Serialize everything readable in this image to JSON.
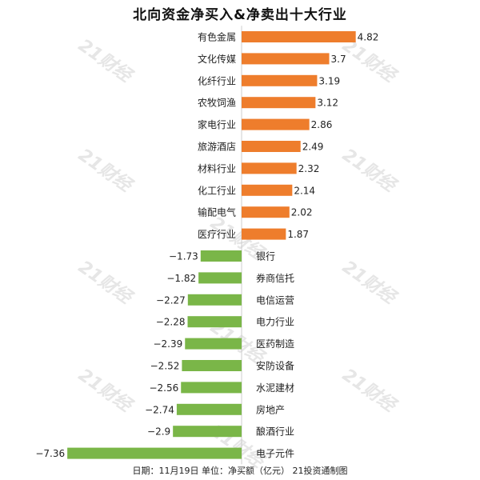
{
  "page": {
    "title": "北向资金净买入&净卖出十大行业",
    "watermark": "21财经",
    "footer": "日期：11月19日 单位：净买额（亿元） 21投资通制图"
  },
  "colors": {
    "positive": "#ee7d2c",
    "negative": "#7ab648",
    "axis": "#cccccc",
    "text": "#222222"
  },
  "chart_data": {
    "type": "bar",
    "orientation": "horizontal",
    "unit": "净买额（亿元）",
    "categories": [
      "有色金属",
      "文化传媒",
      "化纤行业",
      "农牧饲渔",
      "家电行业",
      "旅游酒店",
      "材料行业",
      "化工行业",
      "输配电气",
      "医疗行业",
      "银行",
      "券商信托",
      "电信运营",
      "电力行业",
      "医药制造",
      "安防设备",
      "水泥建材",
      "房地产",
      "酿酒行业",
      "电子元件"
    ],
    "values": [
      4.82,
      3.7,
      3.19,
      3.12,
      2.86,
      2.49,
      2.32,
      2.14,
      2.02,
      1.87,
      -1.73,
      -1.82,
      -2.27,
      -2.28,
      -2.39,
      -2.52,
      -2.56,
      -2.74,
      -2.9,
      -7.36
    ],
    "value_labels": [
      "4.82",
      "3.7",
      "3.19",
      "3.12",
      "2.86",
      "2.49",
      "2.32",
      "2.14",
      "2.02",
      "1.87",
      "−1.73",
      "−1.82",
      "−2.27",
      "−2.28",
      "−2.39",
      "−2.52",
      "−2.56",
      "−2.74",
      "−2.9",
      "−7.36"
    ],
    "xlim": [
      -7.36,
      4.82
    ],
    "grid": false,
    "legend": "none"
  }
}
